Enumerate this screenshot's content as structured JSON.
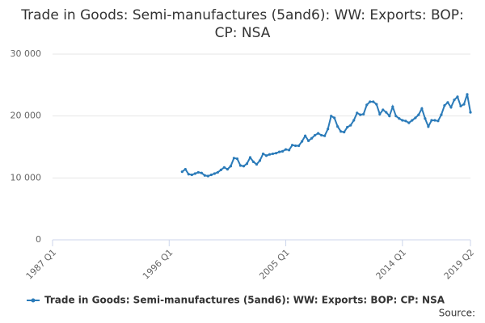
{
  "chart_data": {
    "type": "line",
    "title": "Trade in Goods: Semi-manufactures (5and6): WW: Exports: BOP: CP: NSA",
    "categories": [
      "1987 Q1",
      null,
      null,
      null,
      null,
      null,
      null,
      null,
      null,
      null,
      null,
      null,
      null,
      null,
      null,
      null,
      null,
      null,
      null,
      null,
      null,
      null,
      null,
      null,
      null,
      null,
      null,
      null,
      null,
      null,
      null,
      null,
      null,
      null,
      null,
      null,
      "1996 Q1",
      null,
      null,
      null,
      null,
      null,
      null,
      null,
      null,
      null,
      null,
      null,
      null,
      null,
      null,
      null,
      null,
      null,
      null,
      null,
      null,
      null,
      null,
      null,
      null,
      null,
      null,
      null,
      null,
      null,
      null,
      null,
      null,
      null,
      null,
      null,
      "2005 Q1",
      null,
      null,
      null,
      null,
      null,
      null,
      null,
      null,
      null,
      null,
      null,
      null,
      null,
      null,
      null,
      null,
      null,
      null,
      null,
      null,
      null,
      null,
      null,
      null,
      null,
      null,
      null,
      null,
      null,
      null,
      null,
      null,
      null,
      null,
      null,
      "2014 Q1",
      null,
      null,
      null,
      null,
      null,
      null,
      null,
      null,
      null,
      null,
      null,
      null,
      null,
      null,
      null,
      null,
      null,
      null,
      null,
      null,
      "2019 Q2"
    ],
    "series": [
      {
        "name": "Trade in Goods: Semi-manufactures (5and6): WW: Exports: BOP: CP: NSA",
        "color": "#2b7bb9",
        "values": [
          null,
          null,
          null,
          null,
          null,
          null,
          null,
          null,
          null,
          null,
          null,
          null,
          null,
          null,
          null,
          null,
          null,
          null,
          null,
          null,
          null,
          null,
          null,
          null,
          null,
          null,
          null,
          null,
          null,
          null,
          null,
          null,
          null,
          null,
          null,
          null,
          null,
          null,
          null,
          null,
          11000,
          11400,
          10600,
          10500,
          10700,
          10900,
          10800,
          10400,
          10300,
          10500,
          10700,
          10900,
          11300,
          11700,
          11400,
          11900,
          13200,
          13100,
          12000,
          11900,
          12300,
          13300,
          12600,
          12200,
          12800,
          13900,
          13600,
          13800,
          13900,
          14000,
          14200,
          14300,
          14600,
          14500,
          15300,
          15200,
          15200,
          15900,
          16800,
          16000,
          16400,
          16900,
          17200,
          16900,
          16800,
          17900,
          20000,
          19700,
          18300,
          17500,
          17400,
          18200,
          18500,
          19300,
          20500,
          20200,
          20300,
          21800,
          22300,
          22300,
          21900,
          20300,
          21000,
          20600,
          20000,
          21500,
          20000,
          19600,
          19300,
          19200,
          18900,
          19300,
          19700,
          20200,
          21200,
          19600,
          18300,
          19300,
          19300,
          19200,
          20200,
          21700,
          22200,
          21400,
          22600,
          23100,
          21600,
          21900,
          23500,
          20600
        ]
      }
    ],
    "ylim": [
      0,
      30000
    ],
    "yticks": [
      0,
      {
        "value": 10000,
        "label": "10 000"
      },
      {
        "value": 20000,
        "label": "20 000"
      },
      {
        "value": 30000,
        "label": "30 000"
      }
    ],
    "grid": true,
    "source": "Source:"
  }
}
